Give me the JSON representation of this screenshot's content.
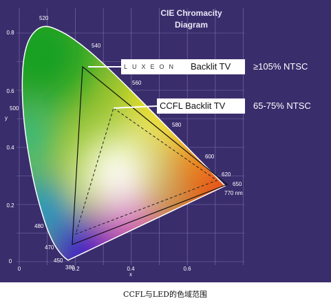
{
  "title": [
    "CIE Chromacity",
    "Diagram"
  ],
  "x_ticks": [
    "0",
    "0.2",
    "0.4",
    "0.6"
  ],
  "y_ticks": [
    "0",
    "0.2",
    "0.4",
    "0.6",
    "0.8"
  ],
  "x_label": "x",
  "y_label": "y",
  "wavelengths": [
    "520",
    "540",
    "560",
    "580",
    "600",
    "620",
    "650",
    "770 nm",
    "500",
    "480",
    "470",
    "450",
    "380"
  ],
  "callouts": [
    {
      "brand": "LUXEON",
      "label": "Backlit TV",
      "coverage": "≥105% NTSC"
    },
    {
      "label": "CCFL Backlit TV",
      "coverage": "65-75% NTSC"
    }
  ],
  "caption": "CCFL与LED的色域范围"
}
